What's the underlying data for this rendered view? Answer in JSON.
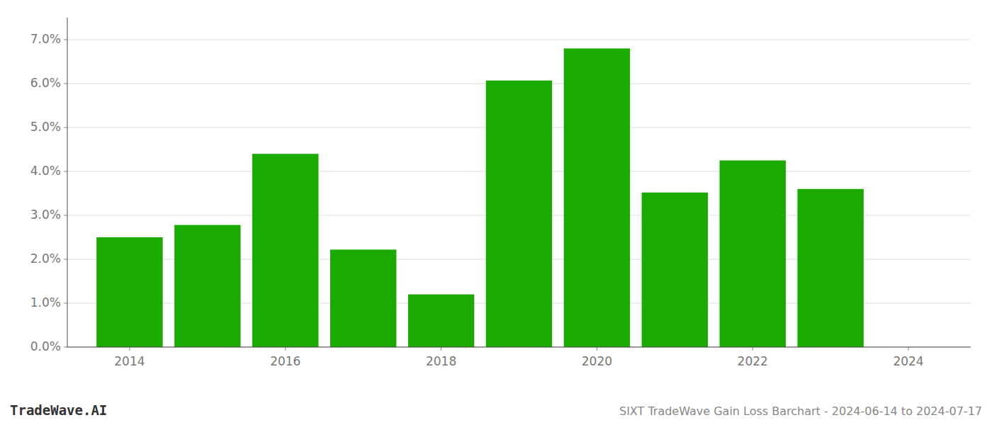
{
  "chart_data": {
    "type": "bar",
    "x": [
      2014,
      2015,
      2016,
      2017,
      2018,
      2019,
      2020,
      2021,
      2022,
      2023
    ],
    "values": [
      0.025,
      0.0278,
      0.044,
      0.0222,
      0.012,
      0.0607,
      0.068,
      0.0352,
      0.0425,
      0.036
    ],
    "color": "#1aaa00",
    "xlim": [
      2013.2,
      2024.8
    ],
    "xticks": [
      2014,
      2016,
      2018,
      2020,
      2022,
      2024
    ],
    "ylim": [
      0.0,
      0.075
    ],
    "yticks": [
      {
        "value": 0.0,
        "label": "0.0%"
      },
      {
        "value": 0.01,
        "label": "1.0%"
      },
      {
        "value": 0.02,
        "label": "2.0%"
      },
      {
        "value": 0.03,
        "label": "3.0%"
      },
      {
        "value": 0.04,
        "label": "4.0%"
      },
      {
        "value": 0.05,
        "label": "5.0%"
      },
      {
        "value": 0.06,
        "label": "6.0%"
      },
      {
        "value": 0.07,
        "label": "7.0%"
      }
    ],
    "grid": true,
    "annotations": [
      "TradeWave.AI",
      "SIXT TradeWave Gain Loss Barchart - 2024-06-14 to 2024-07-17"
    ]
  }
}
